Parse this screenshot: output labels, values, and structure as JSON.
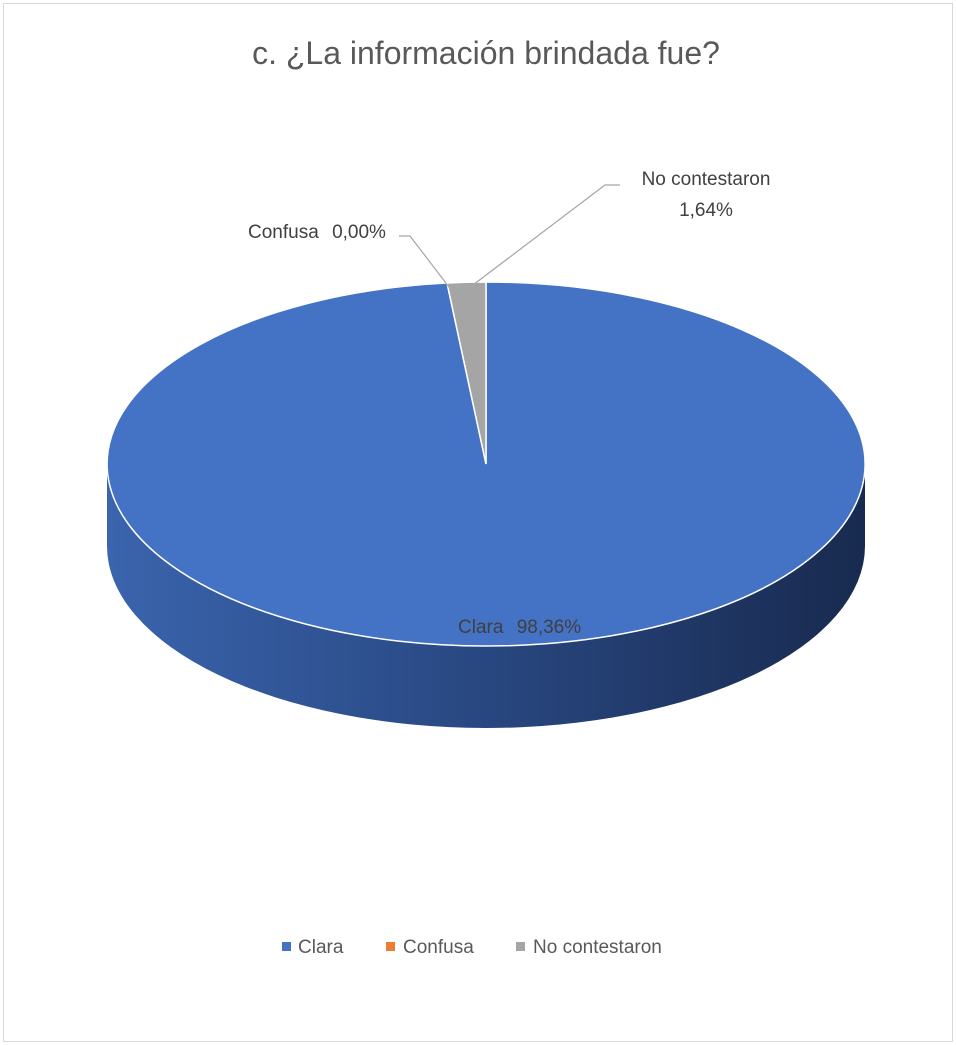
{
  "chart_data": {
    "type": "pie",
    "style": "3d-pie",
    "title": "c. ¿La información brindada fue?",
    "slices": [
      {
        "label": "Clara",
        "value": 98.36,
        "value_label": "98,36%",
        "color": "#4472C4"
      },
      {
        "label": "Confusa",
        "value": 0.0,
        "value_label": "0,00%",
        "color": "#ED7D31"
      },
      {
        "label": "No contestaron",
        "value": 1.64,
        "value_label": "1,64%",
        "color": "#A5A5A5"
      }
    ],
    "legend": {
      "position": "bottom",
      "items": [
        "Clara",
        "Confusa",
        "No contestaron"
      ]
    }
  }
}
